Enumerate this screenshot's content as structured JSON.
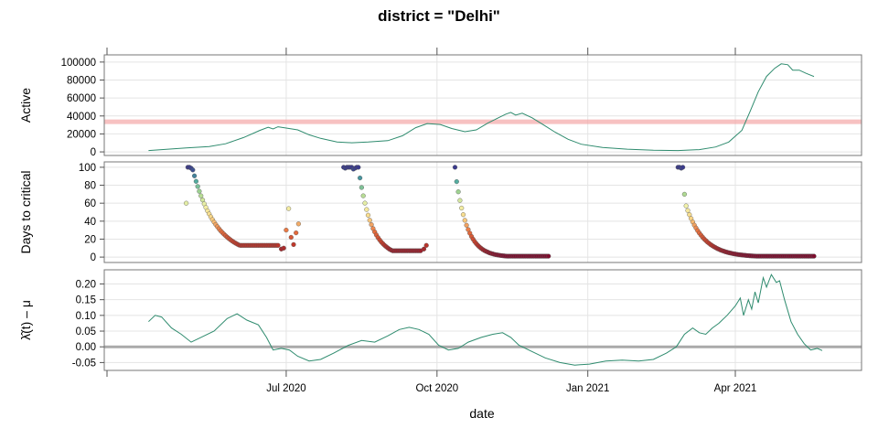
{
  "chart_data": {
    "type": "multi-panel-lattice",
    "title": "district = \"Delhi\"",
    "xlabel": "date",
    "x_ticks": [
      "2020-07-01",
      "2020-10-01",
      "2021-01-01",
      "2021-04-01"
    ],
    "x_tick_labels": [
      "Jul 2020",
      "Oct 2020",
      "Jan 2021",
      "Apr 2021"
    ],
    "xlim": [
      "2020-03-12",
      "2021-06-17"
    ],
    "panels": [
      {
        "name": "active",
        "type": "line",
        "ylabel": "Active",
        "ylim": [
          -4000,
          108000
        ],
        "yticks": [
          0,
          20000,
          40000,
          60000,
          80000,
          100000
        ],
        "line_color": "#2e8b6e",
        "reference_line": {
          "y": 33500,
          "color": "#f4a6a6"
        },
        "series": [
          [
            "2020-04-08",
            1500
          ],
          [
            "2020-04-20",
            3000
          ],
          [
            "2020-05-01",
            4500
          ],
          [
            "2020-05-15",
            6000
          ],
          [
            "2020-05-25",
            9000
          ],
          [
            "2020-06-05",
            16000
          ],
          [
            "2020-06-15",
            24000
          ],
          [
            "2020-06-20",
            27500
          ],
          [
            "2020-06-23",
            25500
          ],
          [
            "2020-06-26",
            28000
          ],
          [
            "2020-07-01",
            26500
          ],
          [
            "2020-07-08",
            24500
          ],
          [
            "2020-07-15",
            19000
          ],
          [
            "2020-07-22",
            15000
          ],
          [
            "2020-08-01",
            11000
          ],
          [
            "2020-08-10",
            10200
          ],
          [
            "2020-08-20",
            11000
          ],
          [
            "2020-09-01",
            12500
          ],
          [
            "2020-09-10",
            18000
          ],
          [
            "2020-09-18",
            27000
          ],
          [
            "2020-09-25",
            31500
          ],
          [
            "2020-10-03",
            30500
          ],
          [
            "2020-10-10",
            26000
          ],
          [
            "2020-10-18",
            22500
          ],
          [
            "2020-10-25",
            24500
          ],
          [
            "2020-11-01",
            32000
          ],
          [
            "2020-11-08",
            38500
          ],
          [
            "2020-11-12",
            42000
          ],
          [
            "2020-11-15",
            44000
          ],
          [
            "2020-11-18",
            41000
          ],
          [
            "2020-11-22",
            43000
          ],
          [
            "2020-11-28",
            38000
          ],
          [
            "2020-12-05",
            30000
          ],
          [
            "2020-12-12",
            22000
          ],
          [
            "2020-12-20",
            14000
          ],
          [
            "2020-12-28",
            8500
          ],
          [
            "2021-01-10",
            5000
          ],
          [
            "2021-01-25",
            3000
          ],
          [
            "2021-02-10",
            1800
          ],
          [
            "2021-02-25",
            1500
          ],
          [
            "2021-03-10",
            2500
          ],
          [
            "2021-03-20",
            5500
          ],
          [
            "2021-03-28",
            11000
          ],
          [
            "2021-04-05",
            24000
          ],
          [
            "2021-04-10",
            45000
          ],
          [
            "2021-04-15",
            67000
          ],
          [
            "2021-04-20",
            84000
          ],
          [
            "2021-04-25",
            93000
          ],
          [
            "2021-04-29",
            98000
          ],
          [
            "2021-05-03",
            97000
          ],
          [
            "2021-05-06",
            91000
          ],
          [
            "2021-05-10",
            91000
          ],
          [
            "2021-05-14",
            87500
          ],
          [
            "2021-05-19",
            84000
          ]
        ]
      },
      {
        "name": "days_to_critical",
        "type": "scatter",
        "ylabel": "Days to critical",
        "ylim": [
          -6,
          106
        ],
        "yticks": [
          0,
          20,
          40,
          60,
          80,
          100
        ],
        "color_scale": [
          "#7a0a2e",
          "#c0392b",
          "#e8703e",
          "#fbd585",
          "#f2f2a9",
          "#a8d78f",
          "#49a7a2",
          "#3a3a8c"
        ],
        "clusters": [
          {
            "start": "2020-05-01",
            "start_val": 60,
            "drop": [
              100,
              100,
              99,
              97
            ],
            "decay_to": 13,
            "end": "2020-06-26",
            "tail": [
              9,
              10,
              30,
              54,
              22,
              14,
              27,
              37
            ]
          },
          {
            "start": "2020-08-05",
            "start_val": 100,
            "drop": [
              99,
              100,
              100,
              100,
              100,
              98,
              99,
              100,
              100
            ],
            "decay_to": 7,
            "end": "2020-09-21",
            "tail": [
              9,
              13
            ]
          },
          {
            "start": "2020-10-12",
            "start_val": 100,
            "drop": [
              84
            ],
            "decay_to": 1,
            "end": "2020-12-08",
            "tail": []
          },
          {
            "start": "2021-02-25",
            "start_val": 100,
            "drop": [
              100,
              99,
              100,
              70,
              57
            ],
            "decay_to": 1,
            "end": "2021-05-19",
            "tail": []
          }
        ]
      },
      {
        "name": "lambda_minus_mu",
        "type": "line",
        "ylabel": "λ̂(t) – μ",
        "ylim": [
          -0.075,
          0.245
        ],
        "yticks": [
          -0.05,
          0.0,
          0.05,
          0.1,
          0.15,
          0.2
        ],
        "ytick_labels": [
          "-0.05",
          "0.00",
          "0.05",
          "0.10",
          "0.15",
          "0.20"
        ],
        "line_color": "#2e8b6e",
        "reference_line": {
          "y": 0,
          "color": "#aaaaaa"
        },
        "series": [
          [
            "2020-04-08",
            0.08
          ],
          [
            "2020-04-12",
            0.1
          ],
          [
            "2020-04-16",
            0.095
          ],
          [
            "2020-04-22",
            0.06
          ],
          [
            "2020-04-28",
            0.04
          ],
          [
            "2020-05-04",
            0.015
          ],
          [
            "2020-05-10",
            0.03
          ],
          [
            "2020-05-18",
            0.05
          ],
          [
            "2020-05-26",
            0.09
          ],
          [
            "2020-06-01",
            0.105
          ],
          [
            "2020-06-07",
            0.085
          ],
          [
            "2020-06-14",
            0.07
          ],
          [
            "2020-06-19",
            0.03
          ],
          [
            "2020-06-23",
            -0.01
          ],
          [
            "2020-06-28",
            -0.005
          ],
          [
            "2020-07-03",
            -0.01
          ],
          [
            "2020-07-08",
            -0.03
          ],
          [
            "2020-07-15",
            -0.045
          ],
          [
            "2020-07-22",
            -0.04
          ],
          [
            "2020-07-30",
            -0.02
          ],
          [
            "2020-08-08",
            0.005
          ],
          [
            "2020-08-16",
            0.02
          ],
          [
            "2020-08-24",
            0.015
          ],
          [
            "2020-09-01",
            0.035
          ],
          [
            "2020-09-08",
            0.055
          ],
          [
            "2020-09-14",
            0.062
          ],
          [
            "2020-09-20",
            0.055
          ],
          [
            "2020-09-26",
            0.04
          ],
          [
            "2020-10-02",
            0.005
          ],
          [
            "2020-10-08",
            -0.01
          ],
          [
            "2020-10-14",
            -0.005
          ],
          [
            "2020-10-20",
            0.015
          ],
          [
            "2020-10-28",
            0.03
          ],
          [
            "2020-11-04",
            0.04
          ],
          [
            "2020-11-10",
            0.045
          ],
          [
            "2020-11-15",
            0.03
          ],
          [
            "2020-11-20",
            0.005
          ],
          [
            "2020-11-28",
            -0.015
          ],
          [
            "2020-12-06",
            -0.035
          ],
          [
            "2020-12-15",
            -0.05
          ],
          [
            "2020-12-24",
            -0.058
          ],
          [
            "2021-01-02",
            -0.055
          ],
          [
            "2021-01-12",
            -0.045
          ],
          [
            "2021-01-22",
            -0.042
          ],
          [
            "2021-02-01",
            -0.045
          ],
          [
            "2021-02-10",
            -0.04
          ],
          [
            "2021-02-18",
            -0.02
          ],
          [
            "2021-02-24",
            0.0
          ],
          [
            "2021-03-01",
            0.04
          ],
          [
            "2021-03-06",
            0.06
          ],
          [
            "2021-03-10",
            0.045
          ],
          [
            "2021-03-14",
            0.04
          ],
          [
            "2021-03-18",
            0.06
          ],
          [
            "2021-03-22",
            0.075
          ],
          [
            "2021-03-27",
            0.1
          ],
          [
            "2021-04-01",
            0.13
          ],
          [
            "2021-04-04",
            0.155
          ],
          [
            "2021-04-06",
            0.1
          ],
          [
            "2021-04-09",
            0.15
          ],
          [
            "2021-04-11",
            0.12
          ],
          [
            "2021-04-13",
            0.175
          ],
          [
            "2021-04-15",
            0.14
          ],
          [
            "2021-04-18",
            0.22
          ],
          [
            "2021-04-20",
            0.19
          ],
          [
            "2021-04-23",
            0.23
          ],
          [
            "2021-04-26",
            0.205
          ],
          [
            "2021-04-28",
            0.21
          ],
          [
            "2021-05-01",
            0.15
          ],
          [
            "2021-05-05",
            0.08
          ],
          [
            "2021-05-09",
            0.04
          ],
          [
            "2021-05-13",
            0.01
          ],
          [
            "2021-05-17",
            -0.01
          ],
          [
            "2021-05-21",
            -0.005
          ],
          [
            "2021-05-24",
            -0.012
          ]
        ]
      }
    ]
  }
}
